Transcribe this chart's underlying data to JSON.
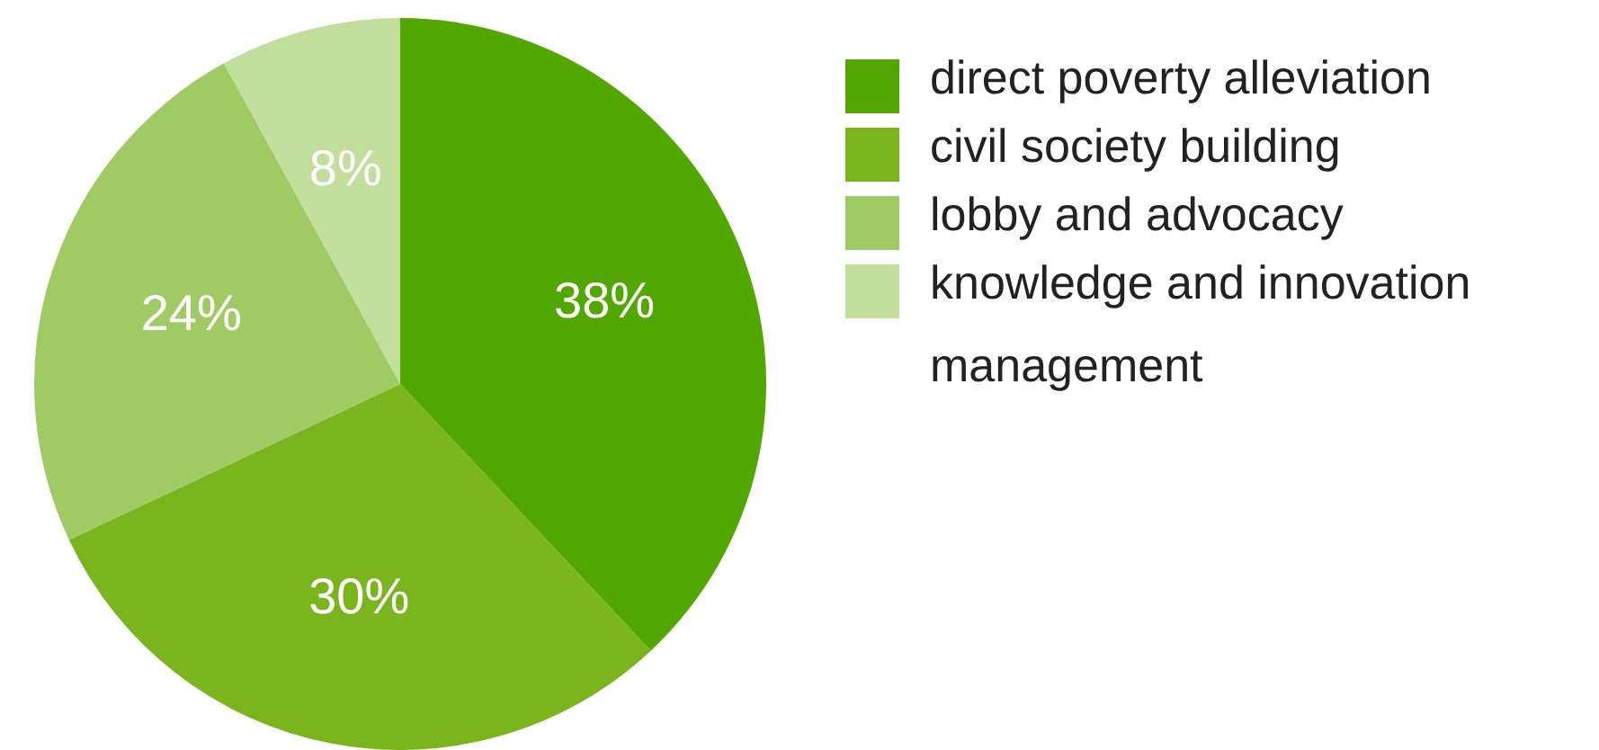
{
  "chart_data": {
    "type": "pie",
    "categories": [
      "direct poverty alleviation",
      "civil society building",
      "lobby and advocacy",
      "knowledge and innovation management"
    ],
    "values": [
      38,
      30,
      24,
      8
    ],
    "colors": [
      "#52a800",
      "#7ab51d",
      "#a0cb64",
      "#c2de9c"
    ],
    "value_labels": [
      "38%",
      "30%",
      "24%",
      "8%"
    ],
    "legend": "right"
  }
}
